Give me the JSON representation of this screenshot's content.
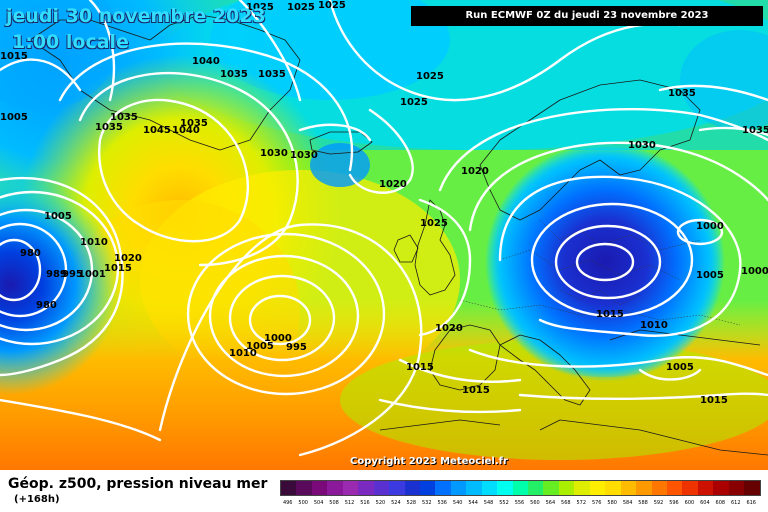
{
  "header": {
    "date_line": "jeudi 30 novembre 2023",
    "time_line": "1:00 locale",
    "run_info": "Run ECMWF 0Z du jeudi 23 novembre 2023"
  },
  "copyright": "Copyright 2023 Meteociel.fr",
  "legend": {
    "title": "Géop. z500, pression niveau mer",
    "subtitle": "(+168h)",
    "values": [
      "496",
      "500",
      "504",
      "508",
      "512",
      "516",
      "520",
      "524",
      "528",
      "532",
      "536",
      "540",
      "544",
      "548",
      "552",
      "556",
      "560",
      "564",
      "568",
      "572",
      "576",
      "580",
      "584",
      "588",
      "592",
      "596",
      "600",
      "604",
      "608",
      "612",
      "616"
    ],
    "colors": [
      "#3a0a3a",
      "#5a0a5a",
      "#7a0a7a",
      "#8a1a9a",
      "#9a2ab0",
      "#7a2ac0",
      "#5a30d0",
      "#3a3ae0",
      "#1a30d0",
      "#0040e0",
      "#0070ff",
      "#0099ff",
      "#00bbff",
      "#00ddff",
      "#00ffee",
      "#00ffaa",
      "#22ee66",
      "#66ee22",
      "#aaee00",
      "#ddee00",
      "#ffee00",
      "#ffdd00",
      "#ffbb00",
      "#ff9900",
      "#ff7700",
      "#ff5500",
      "#ee3300",
      "#cc1100",
      "#aa0000",
      "#880000",
      "#660000"
    ]
  },
  "pressure_labels": [
    "1025",
    "1025",
    "1025",
    "1040",
    "1035",
    "1035",
    "1025",
    "1025",
    "1035",
    "1035",
    "1030",
    "1035",
    "1045",
    "1040",
    "1035",
    "1030",
    "1020",
    "1020",
    "1030",
    "1035",
    "1005",
    "1005",
    "1010",
    "1020",
    "1015",
    "980",
    "989",
    "995",
    "1001",
    "980",
    "1025",
    "1000",
    "1005",
    "1000",
    "995",
    "1010",
    "1020",
    "1015",
    "1010",
    "1005",
    "1000",
    "1015",
    "1015",
    "1005",
    "1015",
    "1015"
  ]
}
